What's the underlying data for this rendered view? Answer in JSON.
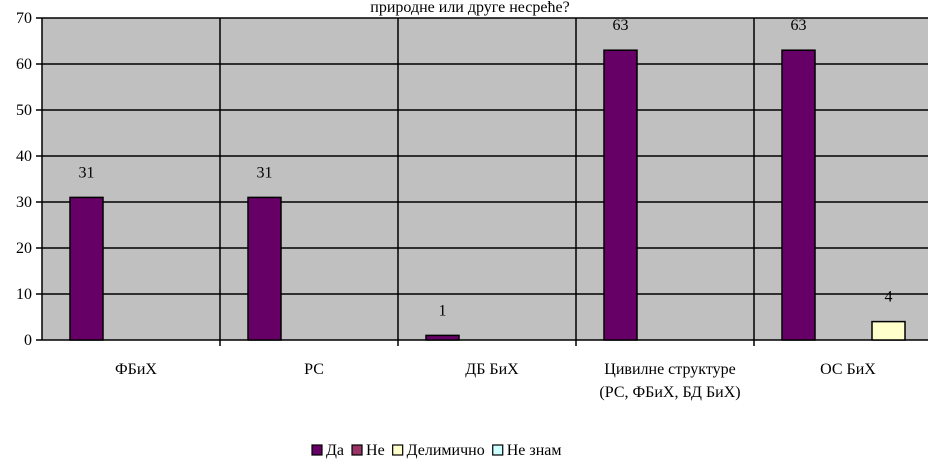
{
  "chart_data": {
    "type": "bar",
    "title": "природне или друге несреће?",
    "categories": [
      "ФБиХ",
      "РС",
      "ДБ БиХ",
      "Цивилне структуре (РС, ФБиХ, БД БиХ)",
      "ОС БиХ"
    ],
    "series": [
      {
        "name": "Да",
        "color": "#660066",
        "values": [
          31,
          31,
          1,
          63,
          63
        ]
      },
      {
        "name": "Не",
        "color": "#993366",
        "values": [
          null,
          null,
          null,
          null,
          null
        ]
      },
      {
        "name": "Делимично",
        "color": "#ffffcc",
        "values": [
          null,
          null,
          null,
          null,
          4
        ]
      },
      {
        "name": "Не знам",
        "color": "#ccffff",
        "values": [
          null,
          null,
          null,
          null,
          null
        ]
      }
    ],
    "ylim": [
      0,
      70
    ],
    "yticks": [
      0,
      10,
      20,
      30,
      40,
      50,
      60,
      70
    ],
    "grid": true,
    "legend": "bottom"
  }
}
